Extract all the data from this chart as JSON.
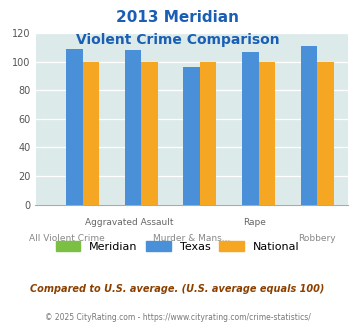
{
  "title_line1": "2013 Meridian",
  "title_line2": "Violent Crime Comparison",
  "meridian": [
    0,
    0,
    0,
    0,
    0
  ],
  "texas": [
    109,
    108,
    96,
    107,
    111
  ],
  "national": [
    100,
    100,
    100,
    100,
    100
  ],
  "color_meridian": "#7bc043",
  "color_texas": "#4a90d9",
  "color_national": "#f5a623",
  "ylim": [
    0,
    120
  ],
  "yticks": [
    0,
    20,
    40,
    60,
    80,
    100,
    120
  ],
  "bg_color": "#ddeaea",
  "title_color": "#1a5fb4",
  "footnote": "Compared to U.S. average. (U.S. average equals 100)",
  "footnote2": "© 2025 CityRating.com - https://www.cityrating.com/crime-statistics/",
  "footnote_color": "#8b4000",
  "footnote2_color": "#777777",
  "top_xlabels": [
    "",
    "Aggravated Assault",
    "",
    "Rape",
    ""
  ],
  "bot_xlabels": [
    "All Violent Crime",
    "",
    "Murder & Mans...",
    "",
    "Robbery"
  ],
  "legend_labels": [
    "Meridian",
    "Texas",
    "National"
  ]
}
